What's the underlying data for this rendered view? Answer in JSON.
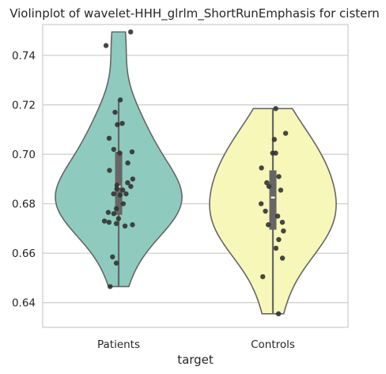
{
  "chart_data": {
    "type": "violin",
    "title": "Violinplot of wavelet-HHH_glrlm_ShortRunEmphasis for cistern",
    "xlabel": "target",
    "ylabel": "",
    "ylim": [
      0.63,
      0.7525
    ],
    "yticks": [
      0.64,
      0.66,
      0.68,
      0.7,
      0.72,
      0.74
    ],
    "ytick_labels": [
      "0.64",
      "0.66",
      "0.68",
      "0.70",
      "0.72",
      "0.74"
    ],
    "categories": [
      "Patients",
      "Controls"
    ],
    "grid": true,
    "colors": {
      "Patients": "#8ecbbe",
      "Controls": "#f7f7b9"
    },
    "series": [
      {
        "category": "Patients",
        "min": 0.6465,
        "max": 0.7495,
        "q1": 0.6755,
        "median": 0.687,
        "q3": 0.701,
        "whisker_low": 0.6465,
        "whisker_high": 0.722,
        "points": [
          0.7495,
          0.744,
          0.722,
          0.717,
          0.712,
          0.7125,
          0.7065,
          0.702,
          0.7005,
          0.701,
          0.6965,
          0.6935,
          0.69,
          0.6885,
          0.6875,
          0.687,
          0.686,
          0.6855,
          0.684,
          0.684,
          0.6835,
          0.68,
          0.678,
          0.6765,
          0.676,
          0.674,
          0.673,
          0.6725,
          0.672,
          0.6715,
          0.671,
          0.6585,
          0.656,
          0.6465
        ]
      },
      {
        "category": "Controls",
        "min": 0.6355,
        "max": 0.7185,
        "q1": 0.6695,
        "median": 0.6825,
        "q3": 0.6935,
        "whisker_low": 0.6355,
        "whisker_high": 0.7185,
        "points": [
          0.7185,
          0.7085,
          0.706,
          0.7005,
          0.7005,
          0.6945,
          0.691,
          0.6885,
          0.687,
          0.6855,
          0.68,
          0.677,
          0.675,
          0.6725,
          0.6715,
          0.669,
          0.6655,
          0.662,
          0.658,
          0.6505,
          0.6355
        ]
      }
    ]
  }
}
